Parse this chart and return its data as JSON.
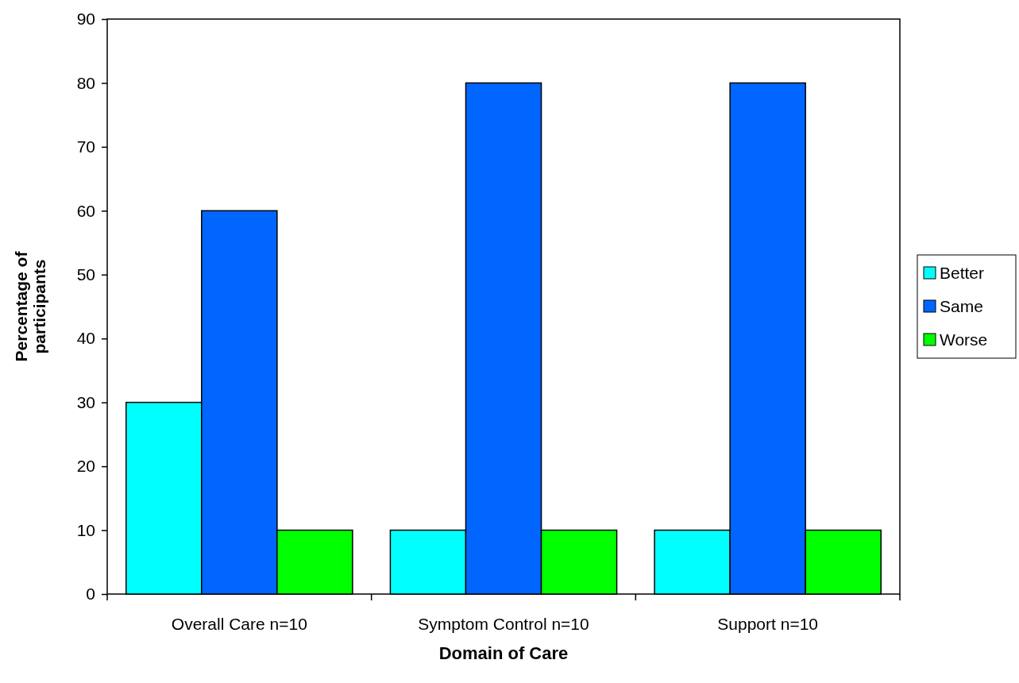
{
  "chart_data": {
    "type": "bar",
    "xlabel": "Domain of Care",
    "ylabel": "Percentage of participants",
    "categories": [
      "Overall Care n=10",
      "Symptom Control n=10",
      "Support n=10"
    ],
    "series": [
      {
        "name": "Better",
        "color": "#00ffff",
        "values": [
          30,
          10,
          10
        ]
      },
      {
        "name": "Same",
        "color": "#0066ff",
        "values": [
          60,
          80,
          80
        ]
      },
      {
        "name": "Worse",
        "color": "#00ff00",
        "values": [
          10,
          10,
          10
        ]
      }
    ],
    "ylim": [
      0,
      90
    ],
    "yticks": [
      0,
      10,
      20,
      30,
      40,
      50,
      60,
      70,
      80,
      90
    ],
    "grid": false,
    "legend": "right"
  }
}
